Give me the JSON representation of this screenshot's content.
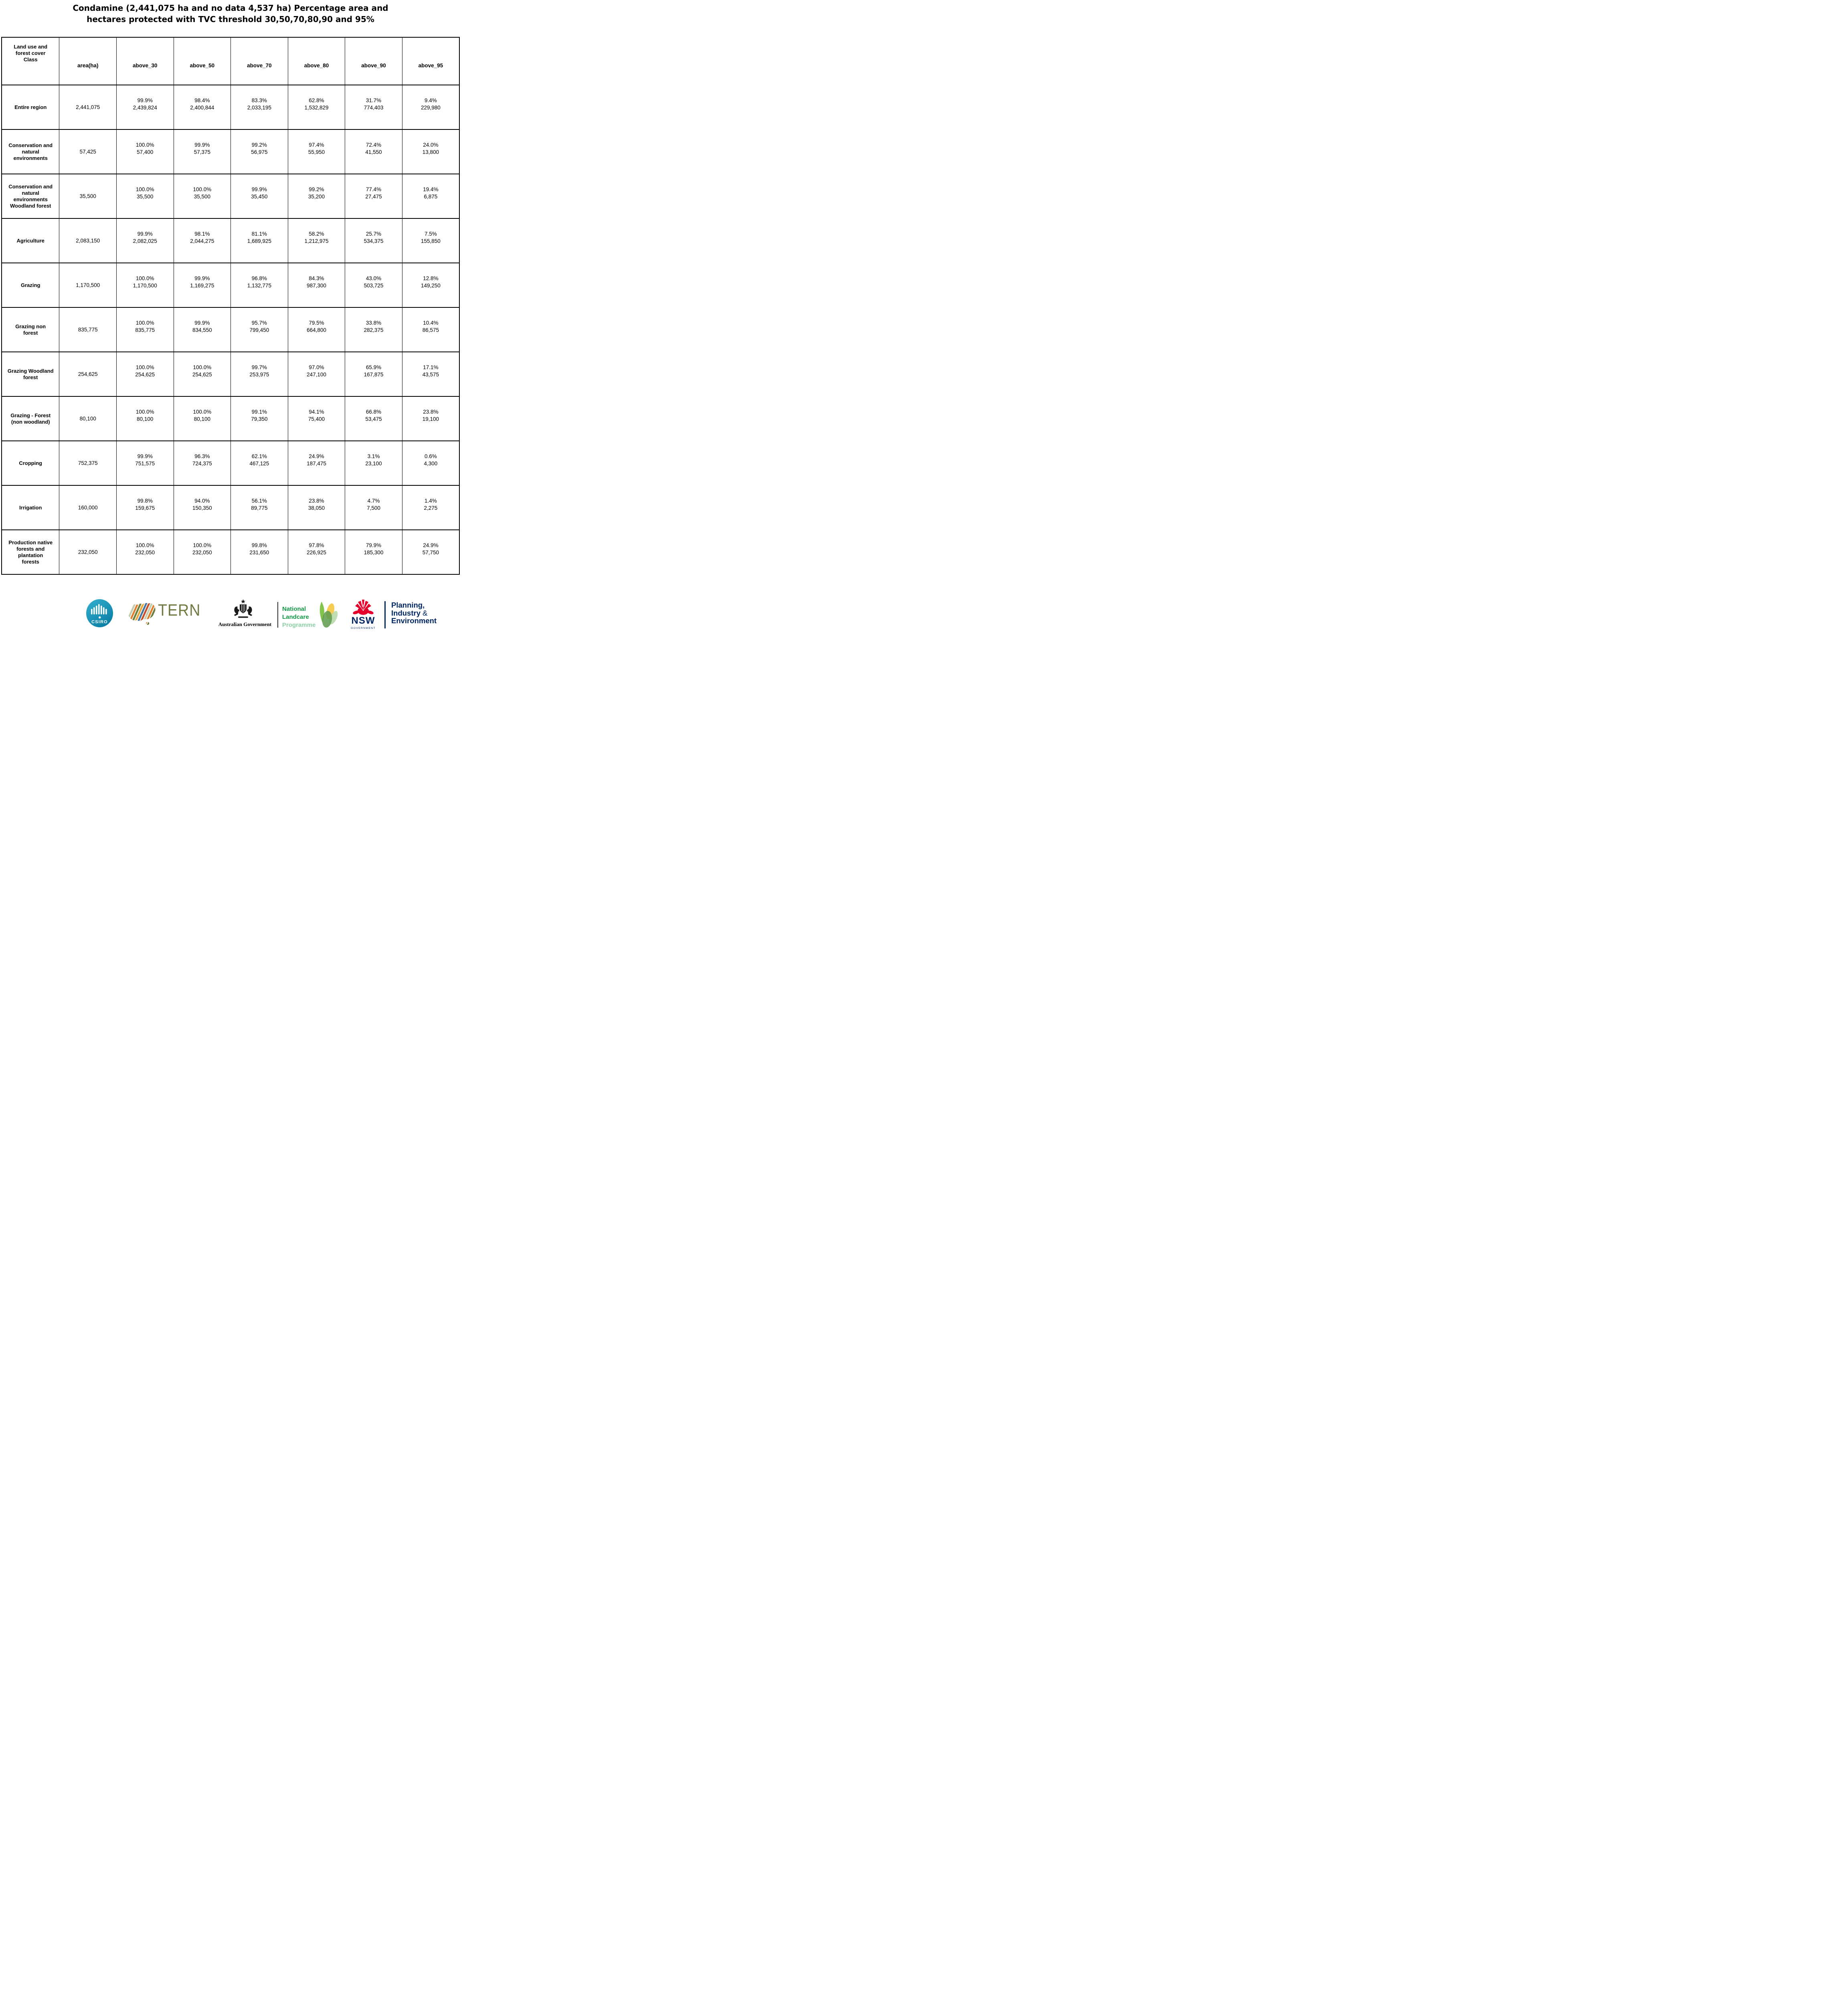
{
  "title": {
    "line1": "Condamine (2,441,075 ha and no data 4,537 ha) Percentage area and",
    "line2": "hectares protected with TVC threshold 30,50,70,80,90 and 95%"
  },
  "table": {
    "columns": [
      "Land use and\nforest cover\nClass",
      "area(ha)",
      "above_30",
      "above_50",
      "above_70",
      "above_80",
      "above_90",
      "above_95"
    ],
    "rows": [
      {
        "label": "Entire region",
        "area": "2,441,075",
        "thresholds": [
          {
            "pct": "99.9%",
            "ha": "2,439,824"
          },
          {
            "pct": "98.4%",
            "ha": "2,400,844"
          },
          {
            "pct": "83.3%",
            "ha": "2,033,195"
          },
          {
            "pct": "62.8%",
            "ha": "1,532,829"
          },
          {
            "pct": "31.7%",
            "ha": "774,403"
          },
          {
            "pct": "9.4%",
            "ha": "229,980"
          }
        ]
      },
      {
        "label": "Conservation and\nnatural\nenvironments",
        "area": "57,425",
        "thresholds": [
          {
            "pct": "100.0%",
            "ha": "57,400"
          },
          {
            "pct": "99.9%",
            "ha": "57,375"
          },
          {
            "pct": "99.2%",
            "ha": "56,975"
          },
          {
            "pct": "97.4%",
            "ha": "55,950"
          },
          {
            "pct": "72.4%",
            "ha": "41,550"
          },
          {
            "pct": "24.0%",
            "ha": "13,800"
          }
        ]
      },
      {
        "label": "Conservation and\nnatural\nenvironments\nWoodland forest",
        "area": "35,500",
        "thresholds": [
          {
            "pct": "100.0%",
            "ha": "35,500"
          },
          {
            "pct": "100.0%",
            "ha": "35,500"
          },
          {
            "pct": "99.9%",
            "ha": "35,450"
          },
          {
            "pct": "99.2%",
            "ha": "35,200"
          },
          {
            "pct": "77.4%",
            "ha": "27,475"
          },
          {
            "pct": "19.4%",
            "ha": "6,875"
          }
        ]
      },
      {
        "label": "Agriculture",
        "area": "2,083,150",
        "thresholds": [
          {
            "pct": "99.9%",
            "ha": "2,082,025"
          },
          {
            "pct": "98.1%",
            "ha": "2,044,275"
          },
          {
            "pct": "81.1%",
            "ha": "1,689,925"
          },
          {
            "pct": "58.2%",
            "ha": "1,212,975"
          },
          {
            "pct": "25.7%",
            "ha": "534,375"
          },
          {
            "pct": "7.5%",
            "ha": "155,850"
          }
        ]
      },
      {
        "label": "Grazing",
        "area": "1,170,500",
        "thresholds": [
          {
            "pct": "100.0%",
            "ha": "1,170,500"
          },
          {
            "pct": "99.9%",
            "ha": "1,169,275"
          },
          {
            "pct": "96.8%",
            "ha": "1,132,775"
          },
          {
            "pct": "84.3%",
            "ha": "987,300"
          },
          {
            "pct": "43.0%",
            "ha": "503,725"
          },
          {
            "pct": "12.8%",
            "ha": "149,250"
          }
        ]
      },
      {
        "label": "Grazing non\nforest",
        "area": "835,775",
        "thresholds": [
          {
            "pct": "100.0%",
            "ha": "835,775"
          },
          {
            "pct": "99.9%",
            "ha": "834,550"
          },
          {
            "pct": "95.7%",
            "ha": "799,450"
          },
          {
            "pct": "79.5%",
            "ha": "664,800"
          },
          {
            "pct": "33.8%",
            "ha": "282,375"
          },
          {
            "pct": "10.4%",
            "ha": "86,575"
          }
        ]
      },
      {
        "label": "Grazing Woodland\nforest",
        "area": "254,625",
        "thresholds": [
          {
            "pct": "100.0%",
            "ha": "254,625"
          },
          {
            "pct": "100.0%",
            "ha": "254,625"
          },
          {
            "pct": "99.7%",
            "ha": "253,975"
          },
          {
            "pct": "97.0%",
            "ha": "247,100"
          },
          {
            "pct": "65.9%",
            "ha": "167,875"
          },
          {
            "pct": "17.1%",
            "ha": "43,575"
          }
        ]
      },
      {
        "label": "Grazing - Forest\n(non woodland)",
        "area": "80,100",
        "thresholds": [
          {
            "pct": "100.0%",
            "ha": "80,100"
          },
          {
            "pct": "100.0%",
            "ha": "80,100"
          },
          {
            "pct": "99.1%",
            "ha": "79,350"
          },
          {
            "pct": "94.1%",
            "ha": "75,400"
          },
          {
            "pct": "66.8%",
            "ha": "53,475"
          },
          {
            "pct": "23.8%",
            "ha": "19,100"
          }
        ]
      },
      {
        "label": "Cropping",
        "area": "752,375",
        "thresholds": [
          {
            "pct": "99.9%",
            "ha": "751,575"
          },
          {
            "pct": "96.3%",
            "ha": "724,375"
          },
          {
            "pct": "62.1%",
            "ha": "467,125"
          },
          {
            "pct": "24.9%",
            "ha": "187,475"
          },
          {
            "pct": "3.1%",
            "ha": "23,100"
          },
          {
            "pct": "0.6%",
            "ha": "4,300"
          }
        ]
      },
      {
        "label": "Irrigation",
        "area": "160,000",
        "thresholds": [
          {
            "pct": "99.8%",
            "ha": "159,675"
          },
          {
            "pct": "94.0%",
            "ha": "150,350"
          },
          {
            "pct": "56.1%",
            "ha": "89,775"
          },
          {
            "pct": "23.8%",
            "ha": "38,050"
          },
          {
            "pct": "4.7%",
            "ha": "7,500"
          },
          {
            "pct": "1.4%",
            "ha": "2,275"
          }
        ]
      },
      {
        "label": "Production native\nforests and\nplantation\nforests",
        "area": "232,050",
        "thresholds": [
          {
            "pct": "100.0%",
            "ha": "232,050"
          },
          {
            "pct": "100.0%",
            "ha": "232,050"
          },
          {
            "pct": "99.8%",
            "ha": "231,650"
          },
          {
            "pct": "97.8%",
            "ha": "226,925"
          },
          {
            "pct": "79.9%",
            "ha": "185,300"
          },
          {
            "pct": "24.9%",
            "ha": "57,750"
          }
        ]
      }
    ]
  },
  "logos": {
    "csiro": {
      "label": "CSIRO",
      "teal_top": "#35b0cf",
      "teal_bottom": "#0a7fa5"
    },
    "tern": {
      "label": "TERN",
      "text_color": "#6f7b42",
      "stripe_colors": [
        "#c5cdb0",
        "#df7f2d",
        "#6c7f3e",
        "#e9a63b",
        "#46759f",
        "#c94f2a"
      ]
    },
    "aus_gov": {
      "label": "Australian Government"
    },
    "landcare": {
      "line1": "National",
      "line2": "Landcare",
      "line3": "Programme",
      "green": "#129a47",
      "light_green": "#8ed0a5",
      "leaf_green": "#7cc143",
      "leaf_gold": "#f5c843",
      "leaf_dark": "#5c9a4e",
      "leaf_pale": "#b8d9a8"
    },
    "nsw": {
      "label": "NSW",
      "sublabel": "GOVERNMENT",
      "navy": "#002664",
      "red": "#e4002b"
    },
    "planning": {
      "line1": "Planning,",
      "line2": "Industry",
      "amp": "&",
      "line3": "Environment",
      "navy": "#002664"
    }
  }
}
